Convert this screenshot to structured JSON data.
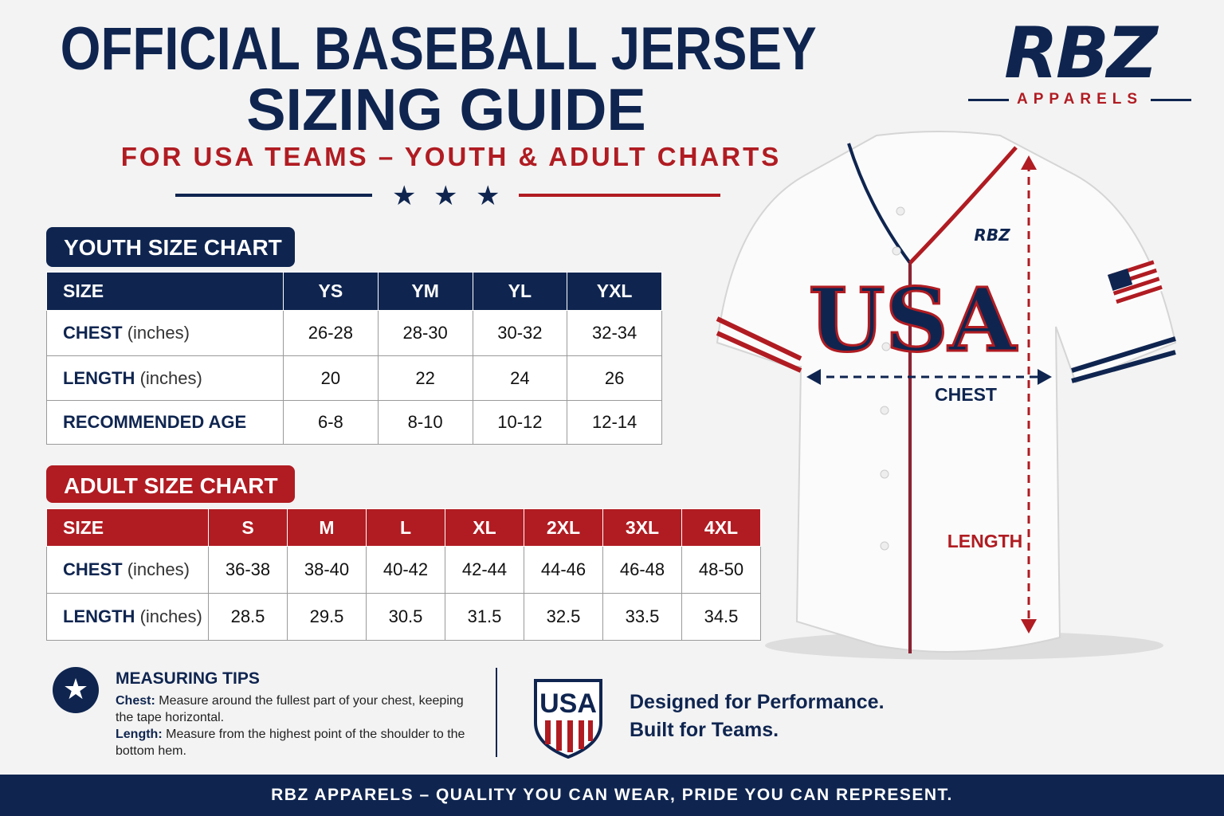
{
  "header": {
    "title_line1": "OFFICIAL BASEBALL JERSEY",
    "title_line2": "SIZING GUIDE",
    "subtitle": "FOR USA TEAMS – YOUTH & ADULT CHARTS"
  },
  "logo": {
    "name": "RBZ",
    "tagline": "APPARELS"
  },
  "youth": {
    "label": "YOUTH SIZE CHART",
    "headers": [
      "SIZE",
      "YS",
      "YM",
      "YL",
      "YXL"
    ],
    "rows": [
      {
        "label": "CHEST",
        "unit": "(inches)",
        "values": [
          "26-28",
          "28-30",
          "30-32",
          "32-34"
        ]
      },
      {
        "label": "LENGTH",
        "unit": "(inches)",
        "values": [
          "20",
          "22",
          "24",
          "26"
        ]
      },
      {
        "label": "RECOMMENDED AGE",
        "unit": "",
        "values": [
          "6-8",
          "8-10",
          "10-12",
          "12-14"
        ]
      }
    ]
  },
  "adult": {
    "label": "ADULT SIZE CHART",
    "headers": [
      "SIZE",
      "S",
      "M",
      "L",
      "XL",
      "2XL",
      "3XL",
      "4XL"
    ],
    "rows": [
      {
        "label": "CHEST",
        "unit": "(inches)",
        "values": [
          "36-38",
          "38-40",
          "40-42",
          "42-44",
          "44-46",
          "46-48",
          "48-50"
        ]
      },
      {
        "label": "LENGTH",
        "unit": "(inches)",
        "values": [
          "28.5",
          "29.5",
          "30.5",
          "31.5",
          "32.5",
          "33.5",
          "34.5"
        ]
      }
    ]
  },
  "jersey": {
    "chest_label": "CHEST",
    "length_label": "LENGTH",
    "front_text": "USA",
    "chest_logo": "RBZ"
  },
  "tips": {
    "title": "MEASURING TIPS",
    "chest_label": "Chest:",
    "chest_text": "Measure around the fullest part of your chest, keeping the tape horizontal.",
    "length_label": "Length:",
    "length_text": "Measure from the highest point of the shoulder to the bottom hem."
  },
  "badge": {
    "text": "USA"
  },
  "tagline": {
    "line1": "Designed for Performance.",
    "line2": "Built for Teams."
  },
  "footer": {
    "text": "RBZ APPARELS – QUALITY YOU CAN WEAR, PRIDE YOU CAN REPRESENT."
  },
  "colors": {
    "navy": "#0f2550",
    "red": "#b01c22",
    "background": "#f3f3f3"
  }
}
